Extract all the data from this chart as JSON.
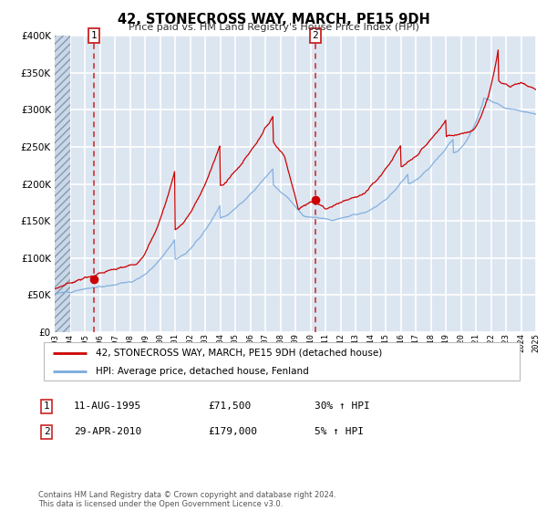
{
  "title": "42, STONECROSS WAY, MARCH, PE15 9DH",
  "subtitle": "Price paid vs. HM Land Registry's House Price Index (HPI)",
  "legend_line1": "42, STONECROSS WAY, MARCH, PE15 9DH (detached house)",
  "legend_line2": "HPI: Average price, detached house, Fenland",
  "sale1_date": "11-AUG-1995",
  "sale1_price": 71500,
  "sale1_hpi": "30% ↑ HPI",
  "sale1_year": 1995.62,
  "sale2_date": "29-APR-2010",
  "sale2_price": 179000,
  "sale2_hpi": "5% ↑ HPI",
  "sale2_year": 2010.33,
  "xmin": 1993,
  "xmax": 2025,
  "ymin": 0,
  "ymax": 400000,
  "yticks": [
    0,
    50000,
    100000,
    150000,
    200000,
    250000,
    300000,
    350000,
    400000
  ],
  "red_color": "#cc0000",
  "blue_color": "#7aaadd",
  "bg_color": "#dce6f1",
  "grid_color": "#ffffff",
  "footnote": "Contains HM Land Registry data © Crown copyright and database right 2024.\nThis data is licensed under the Open Government Licence v3.0."
}
